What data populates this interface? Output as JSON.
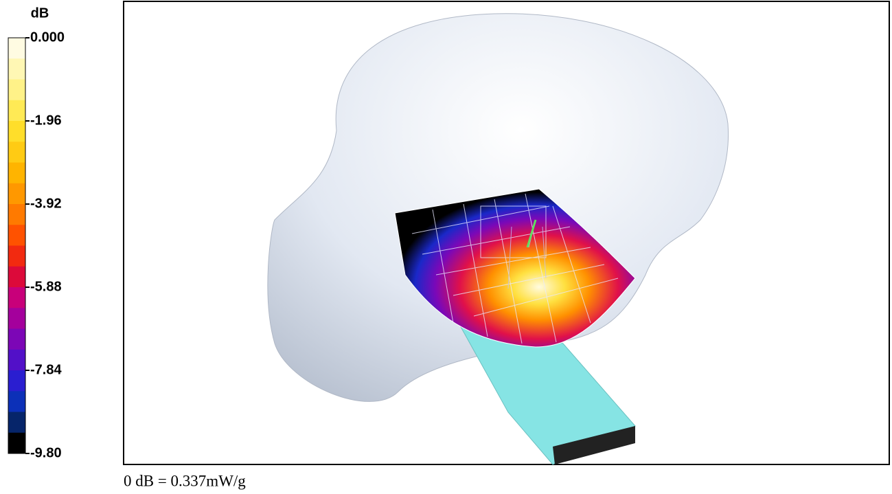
{
  "colorbar": {
    "label": "dB",
    "ylim": [
      -9.8,
      0
    ],
    "ticks": [
      {
        "value": 0,
        "label": "0.000"
      },
      -1.96,
      -3.92,
      -5.88,
      -7.84,
      {
        "value": -9.8,
        "label": "-9.80"
      }
    ],
    "colors": [
      "#fffbe2",
      "#fff7b4",
      "#fff288",
      "#ffea55",
      "#ffde2a",
      "#ffcb14",
      "#ffb400",
      "#ff9800",
      "#ff7a00",
      "#ff5200",
      "#f22a10",
      "#dc0a3a",
      "#c8007a",
      "#a4009c",
      "#7c06b6",
      "#5210c8",
      "#2a1ed0",
      "#0c30b8",
      "#06256a",
      "#000000"
    ]
  },
  "caption": "0 dB = 0.337mW/g"
}
